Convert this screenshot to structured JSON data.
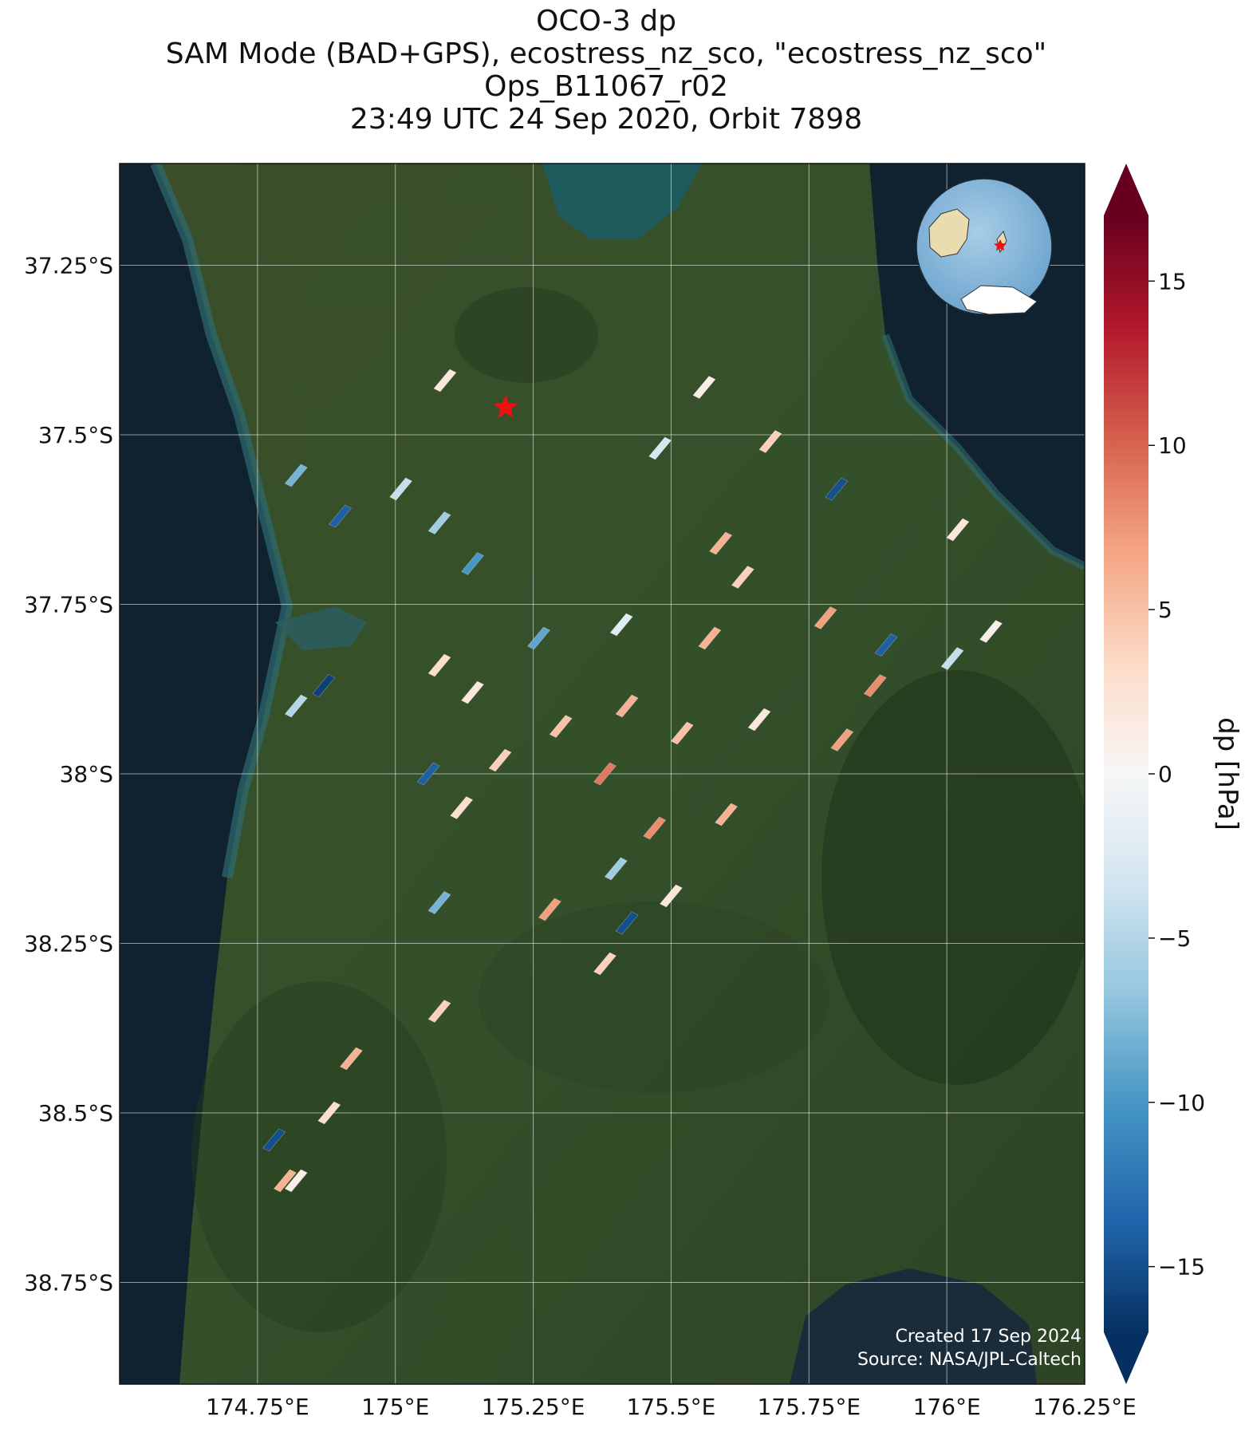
{
  "titles": [
    "OCO-3 dp",
    "SAM Mode (BAD+GPS), ecostress_nz_sco, \"ecostress_nz_sco\"",
    "Ops_B11067_r02",
    "23:49 UTC 24 Sep 2020, Orbit 7898"
  ],
  "credits": {
    "created": "Created 17 Sep 2024",
    "source": "Source: NASA/JPL-Caltech"
  },
  "map": {
    "lon_range": [
      174.5,
      176.25
    ],
    "lat_range": [
      -37.1,
      -38.9
    ],
    "lon_ticks": [
      {
        "value": 174.75,
        "label": "174.75°E"
      },
      {
        "value": 175.0,
        "label": "175°E"
      },
      {
        "value": 175.25,
        "label": "175.25°E"
      },
      {
        "value": 175.5,
        "label": "175.5°E"
      },
      {
        "value": 175.75,
        "label": "175.75°E"
      },
      {
        "value": 176.0,
        "label": "176°E"
      },
      {
        "value": 176.25,
        "label": "176.25°E"
      }
    ],
    "lat_ticks": [
      {
        "value": -37.25,
        "label": "37.25°S"
      },
      {
        "value": -37.5,
        "label": "37.5°S"
      },
      {
        "value": -37.75,
        "label": "37.75°S"
      },
      {
        "value": -38.0,
        "label": "38°S"
      },
      {
        "value": -38.25,
        "label": "38.25°S"
      },
      {
        "value": -38.5,
        "label": "38.5°S"
      },
      {
        "value": -38.75,
        "label": "38.75°S"
      }
    ],
    "grid": true,
    "basemap": "satellite imagery",
    "target_marker": {
      "type": "red-star",
      "lon": 175.2,
      "lat": -37.46
    },
    "inset": {
      "type": "globe",
      "marker": "red-star",
      "position": "top-right"
    }
  },
  "colorbar": {
    "label": "dp [hPa]",
    "range": [
      -17,
      17
    ],
    "ticks": [
      {
        "value": 15,
        "label": "15"
      },
      {
        "value": 10,
        "label": "10"
      },
      {
        "value": 5,
        "label": "5"
      },
      {
        "value": 0,
        "label": "0"
      },
      {
        "value": -5,
        "label": "−5"
      },
      {
        "value": -10,
        "label": "−10"
      },
      {
        "value": -15,
        "label": "−15"
      }
    ],
    "colormap": "RdBu_r",
    "extend": "both",
    "colors": [
      "#053061",
      "#2166ac",
      "#4393c3",
      "#92c5de",
      "#d1e5f0",
      "#f7f7f7",
      "#fddbc7",
      "#f4a582",
      "#d6604d",
      "#b2182b",
      "#67001f"
    ]
  },
  "chart_data": {
    "type": "scatter",
    "title": "OCO-3 dp",
    "variable": "dp [hPa]",
    "points": [
      {
        "lon": 175.09,
        "lat": -37.42,
        "dp": 2
      },
      {
        "lon": 175.56,
        "lat": -37.43,
        "dp": 1
      },
      {
        "lon": 175.48,
        "lat": -37.52,
        "dp": -3
      },
      {
        "lon": 175.68,
        "lat": -37.51,
        "dp": 4
      },
      {
        "lon": 175.01,
        "lat": -37.58,
        "dp": -4
      },
      {
        "lon": 175.08,
        "lat": -37.63,
        "dp": -6
      },
      {
        "lon": 174.82,
        "lat": -37.56,
        "dp": -8
      },
      {
        "lon": 174.9,
        "lat": -37.62,
        "dp": -14
      },
      {
        "lon": 175.14,
        "lat": -37.69,
        "dp": -10
      },
      {
        "lon": 175.63,
        "lat": -37.71,
        "dp": 4
      },
      {
        "lon": 175.59,
        "lat": -37.66,
        "dp": 6
      },
      {
        "lon": 175.8,
        "lat": -37.58,
        "dp": -15
      },
      {
        "lon": 176.02,
        "lat": -37.64,
        "dp": 2
      },
      {
        "lon": 175.26,
        "lat": -37.8,
        "dp": -9
      },
      {
        "lon": 175.41,
        "lat": -37.78,
        "dp": -2
      },
      {
        "lon": 175.57,
        "lat": -37.8,
        "dp": 6
      },
      {
        "lon": 175.78,
        "lat": -37.77,
        "dp": 7
      },
      {
        "lon": 175.89,
        "lat": -37.81,
        "dp": -14
      },
      {
        "lon": 176.01,
        "lat": -37.83,
        "dp": -4
      },
      {
        "lon": 176.08,
        "lat": -37.79,
        "dp": 1
      },
      {
        "lon": 174.82,
        "lat": -37.9,
        "dp": -5
      },
      {
        "lon": 174.87,
        "lat": -37.87,
        "dp": -16
      },
      {
        "lon": 175.08,
        "lat": -37.84,
        "dp": 3
      },
      {
        "lon": 175.14,
        "lat": -37.88,
        "dp": 2
      },
      {
        "lon": 175.19,
        "lat": -37.98,
        "dp": 4
      },
      {
        "lon": 175.3,
        "lat": -37.93,
        "dp": 5
      },
      {
        "lon": 175.42,
        "lat": -37.9,
        "dp": 6
      },
      {
        "lon": 175.52,
        "lat": -37.94,
        "dp": 5
      },
      {
        "lon": 175.66,
        "lat": -37.92,
        "dp": 2
      },
      {
        "lon": 175.81,
        "lat": -37.95,
        "dp": 7
      },
      {
        "lon": 175.87,
        "lat": -37.87,
        "dp": 8
      },
      {
        "lon": 175.06,
        "lat": -38.0,
        "dp": -14
      },
      {
        "lon": 175.12,
        "lat": -38.05,
        "dp": 3
      },
      {
        "lon": 175.38,
        "lat": -38.0,
        "dp": 9
      },
      {
        "lon": 175.47,
        "lat": -38.08,
        "dp": 8
      },
      {
        "lon": 175.6,
        "lat": -38.06,
        "dp": 6
      },
      {
        "lon": 175.4,
        "lat": -38.14,
        "dp": -6
      },
      {
        "lon": 175.28,
        "lat": -38.2,
        "dp": 7
      },
      {
        "lon": 175.5,
        "lat": -38.18,
        "dp": 2
      },
      {
        "lon": 175.42,
        "lat": -38.22,
        "dp": -15
      },
      {
        "lon": 175.08,
        "lat": -38.19,
        "dp": -8
      },
      {
        "lon": 175.38,
        "lat": -38.28,
        "dp": 4
      },
      {
        "lon": 175.08,
        "lat": -38.35,
        "dp": 4
      },
      {
        "lon": 174.92,
        "lat": -38.42,
        "dp": 6
      },
      {
        "lon": 174.88,
        "lat": -38.5,
        "dp": 3
      },
      {
        "lon": 174.78,
        "lat": -38.54,
        "dp": -15
      },
      {
        "lon": 174.8,
        "lat": -38.6,
        "dp": 6
      },
      {
        "lon": 174.82,
        "lat": -38.6,
        "dp": 1
      }
    ]
  }
}
